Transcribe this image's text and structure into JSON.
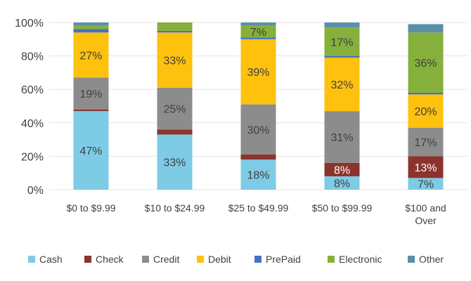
{
  "chart_data": {
    "type": "bar",
    "stacked": true,
    "title": "",
    "xlabel": "",
    "ylabel": "",
    "ylim": [
      0,
      100
    ],
    "yticks": [
      "0%",
      "20%",
      "40%",
      "60%",
      "80%",
      "100%"
    ],
    "grid": true,
    "legend_position": "bottom",
    "categories": [
      "$0 to $9.99",
      "$10 to $24.99",
      "$25 to $49.99",
      "$50 to $99.99",
      "$100 and Over"
    ],
    "series": [
      {
        "name": "Cash",
        "color": "#7ecbe6",
        "values": [
          47,
          33,
          18,
          8,
          7
        ]
      },
      {
        "name": "Check",
        "color": "#8b332c",
        "values": [
          1,
          3,
          3,
          8,
          13
        ]
      },
      {
        "name": "Credit",
        "color": "#8c8c8c",
        "values": [
          19,
          25,
          30,
          31,
          17
        ]
      },
      {
        "name": "Debit",
        "color": "#fdc10e",
        "values": [
          27,
          33,
          39,
          32,
          20
        ]
      },
      {
        "name": "PrePaid",
        "color": "#4472c4",
        "values": [
          2,
          1,
          1,
          1,
          1
        ]
      },
      {
        "name": "Electronic",
        "color": "#86b03c",
        "values": [
          2,
          5,
          7,
          17,
          36
        ]
      },
      {
        "name": "Other",
        "color": "#5b8fa8",
        "values": [
          2,
          0,
          2,
          3,
          5
        ]
      }
    ],
    "label_threshold": 7
  }
}
